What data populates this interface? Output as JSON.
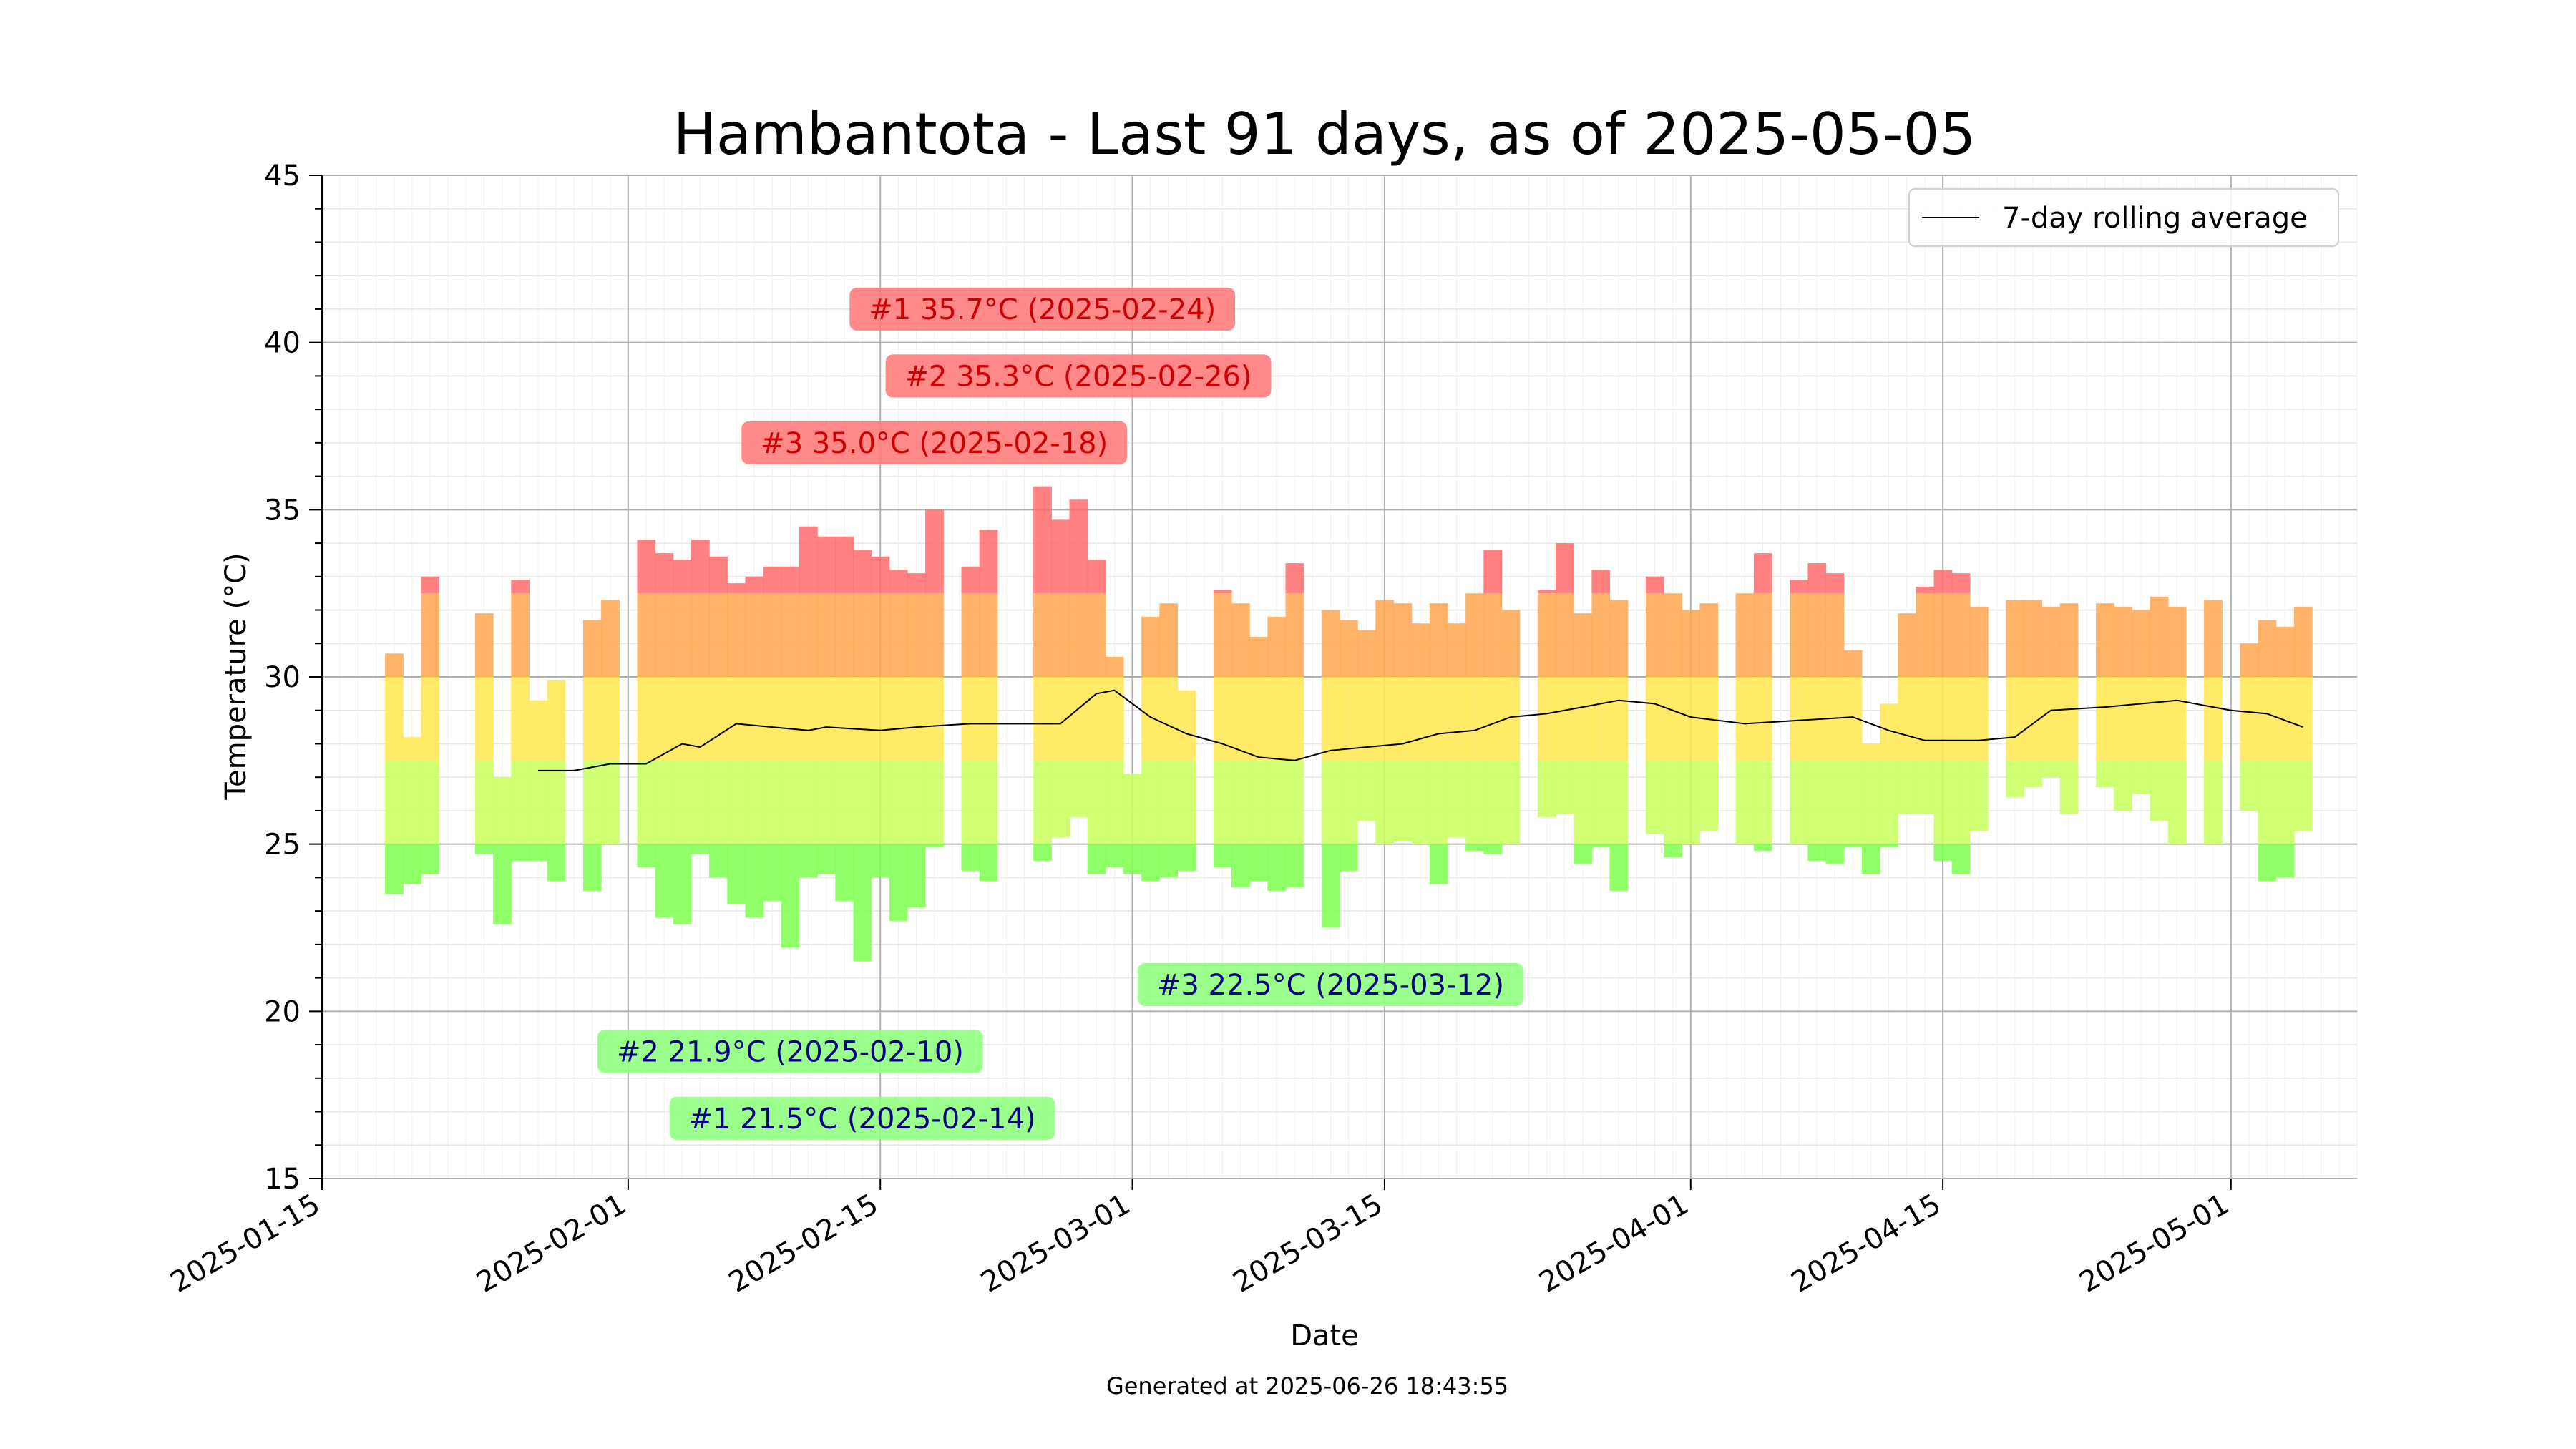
{
  "chart_data": {
    "type": "bar",
    "title": "Hambantota - Last 91 days, as of 2025-05-05",
    "xlabel": "Date",
    "ylabel": "Temperature (°C)",
    "ylim": [
      15,
      45
    ],
    "xlim": [
      "2025-01-15",
      "2025-05-08"
    ],
    "x_ticks": [
      "2025-01-15",
      "2025-02-01",
      "2025-02-15",
      "2025-03-01",
      "2025-03-15",
      "2025-04-01",
      "2025-04-15",
      "2025-05-01"
    ],
    "y_ticks": [
      15,
      20,
      25,
      30,
      35,
      40,
      45
    ],
    "grid": true,
    "legend": {
      "placement": "top-right",
      "entries": [
        "7-day rolling average"
      ]
    },
    "footer": "Generated at 2025-06-26 18:43:55",
    "colors": {
      "hot": "#ff6b6b",
      "warm": "#ffa64d",
      "mild": "#ffe84d",
      "cool": "#c8ff5a",
      "cold": "#7dff4d",
      "avg_line": "#000000",
      "max_label_bg": "#ff7b7b",
      "max_label_text": "#cc0000",
      "min_label_bg": "#90ff80",
      "min_label_text": "#000080"
    },
    "daily": [
      {
        "date": "2025-01-19",
        "min": 23.5,
        "max": 30.7
      },
      {
        "date": "2025-01-20",
        "min": 23.8,
        "max": 28.2
      },
      {
        "date": "2025-01-21",
        "min": 24.1,
        "max": 33.0
      },
      {
        "date": "2025-01-24",
        "min": 24.7,
        "max": 31.9
      },
      {
        "date": "2025-01-25",
        "min": 22.6,
        "max": 27.0
      },
      {
        "date": "2025-01-26",
        "min": 24.5,
        "max": 32.9
      },
      {
        "date": "2025-01-27",
        "min": 24.5,
        "max": 29.3
      },
      {
        "date": "2025-01-28",
        "min": 23.9,
        "max": 29.9
      },
      {
        "date": "2025-01-30",
        "min": 23.6,
        "max": 31.7
      },
      {
        "date": "2025-01-31",
        "min": 25.0,
        "max": 32.3
      },
      {
        "date": "2025-02-02",
        "min": 24.3,
        "max": 34.1
      },
      {
        "date": "2025-02-03",
        "min": 22.8,
        "max": 33.7
      },
      {
        "date": "2025-02-04",
        "min": 22.6,
        "max": 33.5
      },
      {
        "date": "2025-02-05",
        "min": 24.7,
        "max": 34.1
      },
      {
        "date": "2025-02-06",
        "min": 24.0,
        "max": 33.6
      },
      {
        "date": "2025-02-07",
        "min": 23.2,
        "max": 32.8
      },
      {
        "date": "2025-02-08",
        "min": 22.8,
        "max": 33.0
      },
      {
        "date": "2025-02-09",
        "min": 23.3,
        "max": 33.3
      },
      {
        "date": "2025-02-10",
        "min": 21.9,
        "max": 33.3
      },
      {
        "date": "2025-02-11",
        "min": 24.0,
        "max": 34.5
      },
      {
        "date": "2025-02-12",
        "min": 24.1,
        "max": 34.2
      },
      {
        "date": "2025-02-13",
        "min": 23.3,
        "max": 34.2
      },
      {
        "date": "2025-02-14",
        "min": 21.5,
        "max": 33.8
      },
      {
        "date": "2025-02-15",
        "min": 24.0,
        "max": 33.6
      },
      {
        "date": "2025-02-16",
        "min": 22.7,
        "max": 33.2
      },
      {
        "date": "2025-02-17",
        "min": 23.1,
        "max": 33.1
      },
      {
        "date": "2025-02-18",
        "min": 24.9,
        "max": 35.0
      },
      {
        "date": "2025-02-20",
        "min": 24.2,
        "max": 33.3
      },
      {
        "date": "2025-02-21",
        "min": 23.9,
        "max": 34.4
      },
      {
        "date": "2025-02-24",
        "min": 24.5,
        "max": 35.7
      },
      {
        "date": "2025-02-25",
        "min": 25.2,
        "max": 34.7
      },
      {
        "date": "2025-02-26",
        "min": 25.8,
        "max": 35.3
      },
      {
        "date": "2025-02-27",
        "min": 24.1,
        "max": 33.5
      },
      {
        "date": "2025-02-28",
        "min": 24.3,
        "max": 30.6
      },
      {
        "date": "2025-03-01",
        "min": 24.1,
        "max": 27.1
      },
      {
        "date": "2025-03-02",
        "min": 23.9,
        "max": 31.8
      },
      {
        "date": "2025-03-03",
        "min": 24.0,
        "max": 32.2
      },
      {
        "date": "2025-03-04",
        "min": 24.2,
        "max": 29.6
      },
      {
        "date": "2025-03-06",
        "min": 24.3,
        "max": 32.6
      },
      {
        "date": "2025-03-07",
        "min": 23.7,
        "max": 32.2
      },
      {
        "date": "2025-03-08",
        "min": 23.9,
        "max": 31.2
      },
      {
        "date": "2025-03-09",
        "min": 23.6,
        "max": 31.8
      },
      {
        "date": "2025-03-10",
        "min": 23.7,
        "max": 33.4
      },
      {
        "date": "2025-03-12",
        "min": 22.5,
        "max": 32.0
      },
      {
        "date": "2025-03-13",
        "min": 24.2,
        "max": 31.7
      },
      {
        "date": "2025-03-14",
        "min": 25.7,
        "max": 31.4
      },
      {
        "date": "2025-03-15",
        "min": 25.0,
        "max": 32.3
      },
      {
        "date": "2025-03-16",
        "min": 25.1,
        "max": 32.2
      },
      {
        "date": "2025-03-17",
        "min": 25.0,
        "max": 31.6
      },
      {
        "date": "2025-03-18",
        "min": 23.8,
        "max": 32.2
      },
      {
        "date": "2025-03-19",
        "min": 25.2,
        "max": 31.6
      },
      {
        "date": "2025-03-20",
        "min": 24.8,
        "max": 32.5
      },
      {
        "date": "2025-03-21",
        "min": 24.7,
        "max": 33.8
      },
      {
        "date": "2025-03-22",
        "min": 25.0,
        "max": 32.0
      },
      {
        "date": "2025-03-24",
        "min": 25.8,
        "max": 32.6
      },
      {
        "date": "2025-03-25",
        "min": 25.9,
        "max": 34.0
      },
      {
        "date": "2025-03-26",
        "min": 24.4,
        "max": 31.9
      },
      {
        "date": "2025-03-27",
        "min": 24.9,
        "max": 33.2
      },
      {
        "date": "2025-03-28",
        "min": 23.6,
        "max": 32.3
      },
      {
        "date": "2025-03-30",
        "min": 25.3,
        "max": 33.0
      },
      {
        "date": "2025-03-31",
        "min": 24.6,
        "max": 32.5
      },
      {
        "date": "2025-04-01",
        "min": 25.0,
        "max": 32.0
      },
      {
        "date": "2025-04-02",
        "min": 25.4,
        "max": 32.2
      },
      {
        "date": "2025-04-04",
        "min": 25.0,
        "max": 32.5
      },
      {
        "date": "2025-04-05",
        "min": 24.8,
        "max": 33.7
      },
      {
        "date": "2025-04-07",
        "min": 25.0,
        "max": 32.9
      },
      {
        "date": "2025-04-08",
        "min": 24.5,
        "max": 33.4
      },
      {
        "date": "2025-04-09",
        "min": 24.4,
        "max": 33.1
      },
      {
        "date": "2025-04-10",
        "min": 24.9,
        "max": 30.8
      },
      {
        "date": "2025-04-11",
        "min": 24.1,
        "max": 28.0
      },
      {
        "date": "2025-04-12",
        "min": 24.9,
        "max": 29.2
      },
      {
        "date": "2025-04-13",
        "min": 25.9,
        "max": 31.9
      },
      {
        "date": "2025-04-14",
        "min": 25.9,
        "max": 32.7
      },
      {
        "date": "2025-04-15",
        "min": 24.5,
        "max": 33.2
      },
      {
        "date": "2025-04-16",
        "min": 24.1,
        "max": 33.1
      },
      {
        "date": "2025-04-17",
        "min": 25.4,
        "max": 32.1
      },
      {
        "date": "2025-04-19",
        "min": 26.4,
        "max": 32.3
      },
      {
        "date": "2025-04-20",
        "min": 26.7,
        "max": 32.3
      },
      {
        "date": "2025-04-21",
        "min": 27.0,
        "max": 32.1
      },
      {
        "date": "2025-04-22",
        "min": 25.9,
        "max": 32.2
      },
      {
        "date": "2025-04-24",
        "min": 26.7,
        "max": 32.2
      },
      {
        "date": "2025-04-25",
        "min": 26.0,
        "max": 32.1
      },
      {
        "date": "2025-04-26",
        "min": 26.5,
        "max": 32.0
      },
      {
        "date": "2025-04-27",
        "min": 25.7,
        "max": 32.4
      },
      {
        "date": "2025-04-28",
        "min": 25.0,
        "max": 32.1
      },
      {
        "date": "2025-04-30",
        "min": 25.0,
        "max": 32.3
      },
      {
        "date": "2025-05-02",
        "min": 26.0,
        "max": 31.0
      },
      {
        "date": "2025-05-03",
        "min": 23.9,
        "max": 31.7
      },
      {
        "date": "2025-05-04",
        "min": 24.0,
        "max": 31.5
      },
      {
        "date": "2025-05-05",
        "min": 25.4,
        "max": 32.1
      }
    ],
    "rolling_average": [
      {
        "date": "2025-01-27",
        "value": 27.2
      },
      {
        "date": "2025-01-29",
        "value": 27.2
      },
      {
        "date": "2025-01-31",
        "value": 27.4
      },
      {
        "date": "2025-02-02",
        "value": 27.4
      },
      {
        "date": "2025-02-04",
        "value": 28.0
      },
      {
        "date": "2025-02-05",
        "value": 27.9
      },
      {
        "date": "2025-02-07",
        "value": 28.6
      },
      {
        "date": "2025-02-09",
        "value": 28.5
      },
      {
        "date": "2025-02-11",
        "value": 28.4
      },
      {
        "date": "2025-02-12",
        "value": 28.5
      },
      {
        "date": "2025-02-15",
        "value": 28.4
      },
      {
        "date": "2025-02-17",
        "value": 28.5
      },
      {
        "date": "2025-02-20",
        "value": 28.6
      },
      {
        "date": "2025-02-22",
        "value": 28.6
      },
      {
        "date": "2025-02-25",
        "value": 28.6
      },
      {
        "date": "2025-02-27",
        "value": 29.5
      },
      {
        "date": "2025-02-28",
        "value": 29.6
      },
      {
        "date": "2025-03-02",
        "value": 28.8
      },
      {
        "date": "2025-03-04",
        "value": 28.3
      },
      {
        "date": "2025-03-06",
        "value": 28.0
      },
      {
        "date": "2025-03-08",
        "value": 27.6
      },
      {
        "date": "2025-03-10",
        "value": 27.5
      },
      {
        "date": "2025-03-12",
        "value": 27.8
      },
      {
        "date": "2025-03-14",
        "value": 27.9
      },
      {
        "date": "2025-03-16",
        "value": 28.0
      },
      {
        "date": "2025-03-18",
        "value": 28.3
      },
      {
        "date": "2025-03-20",
        "value": 28.4
      },
      {
        "date": "2025-03-22",
        "value": 28.8
      },
      {
        "date": "2025-03-24",
        "value": 28.9
      },
      {
        "date": "2025-03-26",
        "value": 29.1
      },
      {
        "date": "2025-03-28",
        "value": 29.3
      },
      {
        "date": "2025-03-30",
        "value": 29.2
      },
      {
        "date": "2025-04-01",
        "value": 28.8
      },
      {
        "date": "2025-04-04",
        "value": 28.6
      },
      {
        "date": "2025-04-07",
        "value": 28.7
      },
      {
        "date": "2025-04-10",
        "value": 28.8
      },
      {
        "date": "2025-04-12",
        "value": 28.4
      },
      {
        "date": "2025-04-14",
        "value": 28.1
      },
      {
        "date": "2025-04-17",
        "value": 28.1
      },
      {
        "date": "2025-04-19",
        "value": 28.2
      },
      {
        "date": "2025-04-21",
        "value": 29.0
      },
      {
        "date": "2025-04-24",
        "value": 29.1
      },
      {
        "date": "2025-04-28",
        "value": 29.3
      },
      {
        "date": "2025-05-01",
        "value": 29.0
      },
      {
        "date": "2025-05-03",
        "value": 28.9
      },
      {
        "date": "2025-05-05",
        "value": 28.5
      }
    ],
    "annotations": [
      {
        "kind": "max",
        "text": "#1 35.7°C (2025-02-24)",
        "anchor_date": "2025-02-24",
        "anchor_temp": 41.0
      },
      {
        "kind": "max",
        "text": "#2 35.3°C (2025-02-26)",
        "anchor_date": "2025-02-26",
        "anchor_temp": 39.0
      },
      {
        "kind": "max",
        "text": "#3 35.0°C (2025-02-18)",
        "anchor_date": "2025-02-18",
        "anchor_temp": 37.0
      },
      {
        "kind": "min",
        "text": "#1 21.5°C (2025-02-14)",
        "anchor_date": "2025-02-14",
        "anchor_temp": 16.8
      },
      {
        "kind": "min",
        "text": "#2 21.9°C (2025-02-10)",
        "anchor_date": "2025-02-10",
        "anchor_temp": 18.8
      },
      {
        "kind": "min",
        "text": "#3 22.5°C (2025-03-12)",
        "anchor_date": "2025-03-12",
        "anchor_temp": 20.8
      }
    ]
  }
}
